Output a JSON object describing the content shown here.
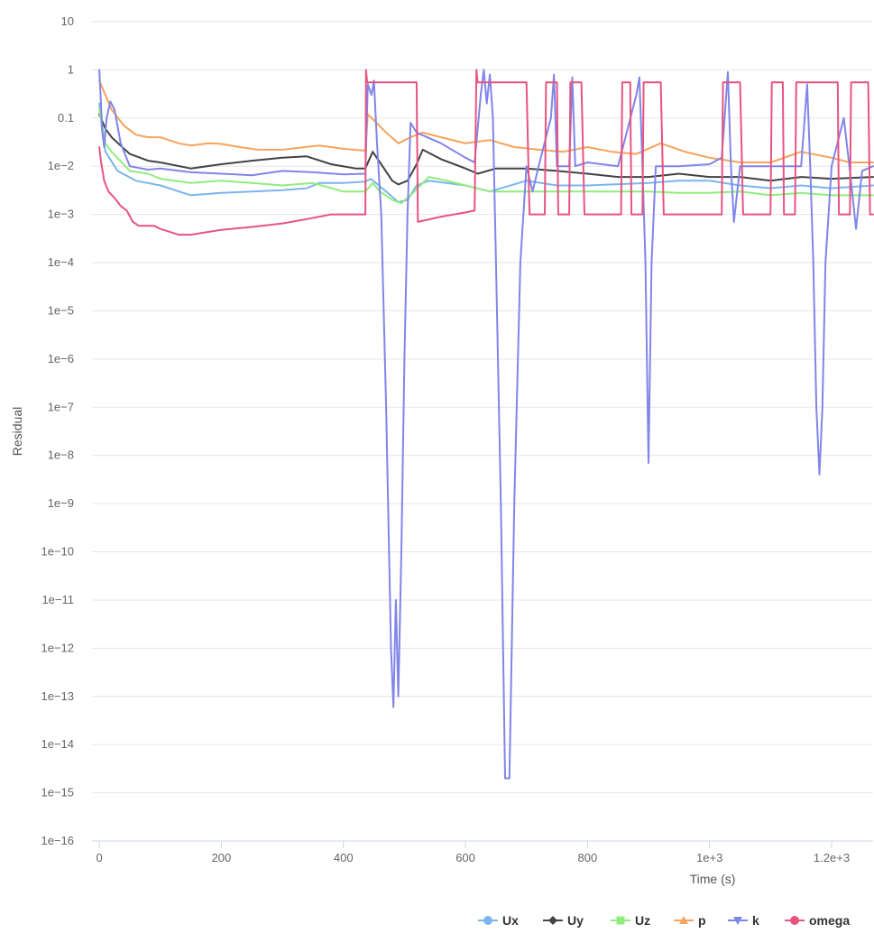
{
  "chart_data": {
    "type": "line",
    "xlabel": "Time (s)",
    "ylabel": "Residual",
    "yscale": "log",
    "xlim": [
      -12,
      1268
    ],
    "ylim_exponent": [
      -16,
      1
    ],
    "x_ticks": [
      0,
      200,
      400,
      600,
      800,
      1000,
      1200
    ],
    "x_tick_labels": [
      "0",
      "200",
      "400",
      "600",
      "800",
      "1e+3",
      "1.2e+3"
    ],
    "y_tick_exponents": [
      1,
      0,
      -1,
      -2,
      -3,
      -4,
      -5,
      -6,
      -7,
      -8,
      -9,
      -10,
      -11,
      -12,
      -13,
      -14,
      -15,
      -16
    ],
    "y_tick_labels": [
      "10",
      "1",
      "0.1",
      "1e−2",
      "1e−3",
      "1e−4",
      "1e−5",
      "1e−6",
      "1e−7",
      "1e−8",
      "1e−9",
      "1e−10",
      "1e−11",
      "1e−12",
      "1e−13",
      "1e−14",
      "1e−15",
      "1e−16"
    ],
    "grid": "horizontal",
    "legend": "bottom-right",
    "series": [
      {
        "name": "Ux",
        "color": "#7cb5ec",
        "marker": "circle",
        "points": [
          [
            0,
            0.2
          ],
          [
            5,
            0.05
          ],
          [
            10,
            0.02
          ],
          [
            30,
            0.008
          ],
          [
            60,
            0.005
          ],
          [
            100,
            0.004
          ],
          [
            150,
            0.0025
          ],
          [
            200,
            0.0028
          ],
          [
            250,
            0.003
          ],
          [
            300,
            0.0032
          ],
          [
            340,
            0.0035
          ],
          [
            360,
            0.0045
          ],
          [
            400,
            0.0045
          ],
          [
            436,
            0.0048
          ],
          [
            445,
            0.0055
          ],
          [
            470,
            0.003
          ],
          [
            490,
            0.0018
          ],
          [
            505,
            0.002
          ],
          [
            520,
            0.004
          ],
          [
            540,
            0.005
          ],
          [
            600,
            0.004
          ],
          [
            640,
            0.003
          ],
          [
            700,
            0.005
          ],
          [
            750,
            0.004
          ],
          [
            800,
            0.004
          ],
          [
            900,
            0.0045
          ],
          [
            950,
            0.005
          ],
          [
            1000,
            0.005
          ],
          [
            1050,
            0.004
          ],
          [
            1100,
            0.0035
          ],
          [
            1150,
            0.004
          ],
          [
            1200,
            0.0035
          ],
          [
            1268,
            0.004
          ]
        ]
      },
      {
        "name": "Uy",
        "color": "#434348",
        "marker": "diamond",
        "points": [
          [
            0,
            0.12
          ],
          [
            10,
            0.06
          ],
          [
            20,
            0.04
          ],
          [
            50,
            0.018
          ],
          [
            80,
            0.013
          ],
          [
            100,
            0.012
          ],
          [
            150,
            0.009
          ],
          [
            200,
            0.011
          ],
          [
            250,
            0.013
          ],
          [
            300,
            0.015
          ],
          [
            340,
            0.016
          ],
          [
            380,
            0.011
          ],
          [
            420,
            0.009
          ],
          [
            436,
            0.009
          ],
          [
            448,
            0.02
          ],
          [
            460,
            0.012
          ],
          [
            480,
            0.005
          ],
          [
            490,
            0.0042
          ],
          [
            505,
            0.005
          ],
          [
            520,
            0.011
          ],
          [
            530,
            0.022
          ],
          [
            560,
            0.014
          ],
          [
            600,
            0.009
          ],
          [
            620,
            0.007
          ],
          [
            650,
            0.009
          ],
          [
            700,
            0.009
          ],
          [
            750,
            0.008
          ],
          [
            800,
            0.007
          ],
          [
            850,
            0.006
          ],
          [
            900,
            0.006
          ],
          [
            950,
            0.007
          ],
          [
            1000,
            0.006
          ],
          [
            1050,
            0.006
          ],
          [
            1100,
            0.005
          ],
          [
            1150,
            0.006
          ],
          [
            1200,
            0.0055
          ],
          [
            1268,
            0.006
          ]
        ]
      },
      {
        "name": "Uz",
        "color": "#90ed7d",
        "marker": "square",
        "points": [
          [
            0,
            0.15
          ],
          [
            10,
            0.03
          ],
          [
            20,
            0.02
          ],
          [
            50,
            0.008
          ],
          [
            80,
            0.007
          ],
          [
            100,
            0.0055
          ],
          [
            150,
            0.0045
          ],
          [
            200,
            0.005
          ],
          [
            250,
            0.0045
          ],
          [
            300,
            0.004
          ],
          [
            350,
            0.0045
          ],
          [
            400,
            0.003
          ],
          [
            436,
            0.003
          ],
          [
            448,
            0.0045
          ],
          [
            460,
            0.003
          ],
          [
            480,
            0.002
          ],
          [
            495,
            0.0017
          ],
          [
            510,
            0.0025
          ],
          [
            540,
            0.006
          ],
          [
            570,
            0.005
          ],
          [
            600,
            0.004
          ],
          [
            640,
            0.003
          ],
          [
            700,
            0.003
          ],
          [
            750,
            0.003
          ],
          [
            800,
            0.003
          ],
          [
            900,
            0.003
          ],
          [
            950,
            0.0028
          ],
          [
            1000,
            0.0028
          ],
          [
            1050,
            0.003
          ],
          [
            1100,
            0.0025
          ],
          [
            1150,
            0.0028
          ],
          [
            1200,
            0.0025
          ],
          [
            1268,
            0.0025
          ]
        ]
      },
      {
        "name": "p",
        "color": "#f7a35c",
        "marker": "triangle",
        "points": [
          [
            0,
            0.6
          ],
          [
            10,
            0.3
          ],
          [
            20,
            0.15
          ],
          [
            40,
            0.07
          ],
          [
            60,
            0.045
          ],
          [
            80,
            0.04
          ],
          [
            100,
            0.04
          ],
          [
            130,
            0.03
          ],
          [
            150,
            0.027
          ],
          [
            180,
            0.03
          ],
          [
            200,
            0.029
          ],
          [
            230,
            0.025
          ],
          [
            260,
            0.022
          ],
          [
            300,
            0.022
          ],
          [
            360,
            0.027
          ],
          [
            400,
            0.023
          ],
          [
            436,
            0.021
          ],
          [
            440,
            0.12
          ],
          [
            450,
            0.09
          ],
          [
            470,
            0.05
          ],
          [
            490,
            0.03
          ],
          [
            510,
            0.04
          ],
          [
            530,
            0.05
          ],
          [
            560,
            0.04
          ],
          [
            600,
            0.03
          ],
          [
            640,
            0.035
          ],
          [
            680,
            0.025
          ],
          [
            720,
            0.022
          ],
          [
            760,
            0.02
          ],
          [
            800,
            0.025
          ],
          [
            840,
            0.02
          ],
          [
            880,
            0.018
          ],
          [
            920,
            0.03
          ],
          [
            960,
            0.02
          ],
          [
            1000,
            0.015
          ],
          [
            1050,
            0.012
          ],
          [
            1100,
            0.012
          ],
          [
            1150,
            0.02
          ],
          [
            1200,
            0.015
          ],
          [
            1230,
            0.012
          ],
          [
            1268,
            0.012
          ]
        ]
      },
      {
        "name": "k",
        "color": "#8085e9",
        "marker": "triangle-down",
        "points": [
          [
            0,
            1
          ],
          [
            2,
            0.3
          ],
          [
            5,
            0.05
          ],
          [
            8,
            0.025
          ],
          [
            12,
            0.1
          ],
          [
            18,
            0.22
          ],
          [
            25,
            0.15
          ],
          [
            35,
            0.03
          ],
          [
            50,
            0.01
          ],
          [
            80,
            0.0085
          ],
          [
            100,
            0.009
          ],
          [
            150,
            0.0075
          ],
          [
            200,
            0.007
          ],
          [
            250,
            0.0065
          ],
          [
            300,
            0.008
          ],
          [
            350,
            0.0075
          ],
          [
            400,
            0.0068
          ],
          [
            436,
            0.007
          ],
          [
            440,
            0.5
          ],
          [
            446,
            0.3
          ],
          [
            450,
            0.6
          ],
          [
            455,
            0.03
          ],
          [
            462,
            0.001
          ],
          [
            470,
            1e-07
          ],
          [
            478,
            1e-12
          ],
          [
            482,
            6e-14
          ],
          [
            486,
            1e-11
          ],
          [
            490,
            1e-13
          ],
          [
            495,
            1e-10
          ],
          [
            500,
            1e-06
          ],
          [
            505,
            0.001
          ],
          [
            510,
            0.08
          ],
          [
            520,
            0.05
          ],
          [
            560,
            0.03
          ],
          [
            600,
            0.015
          ],
          [
            615,
            0.012
          ],
          [
            625,
            0.3
          ],
          [
            630,
            1
          ],
          [
            635,
            0.2
          ],
          [
            640,
            0.8
          ],
          [
            645,
            0.1
          ],
          [
            650,
            0.0001
          ],
          [
            658,
            1e-09
          ],
          [
            665,
            2e-15
          ],
          [
            672,
            2e-15
          ],
          [
            680,
            1e-09
          ],
          [
            690,
            0.0001
          ],
          [
            700,
            0.01
          ],
          [
            710,
            0.003
          ],
          [
            720,
            0.01
          ],
          [
            740,
            0.1
          ],
          [
            745,
            0.8
          ],
          [
            750,
            0.01
          ],
          [
            770,
            0.01
          ],
          [
            775,
            0.7
          ],
          [
            780,
            0.01
          ],
          [
            800,
            0.012
          ],
          [
            850,
            0.01
          ],
          [
            880,
            0.3
          ],
          [
            885,
            0.7
          ],
          [
            890,
            0.01
          ],
          [
            895,
            0.0001
          ],
          [
            900,
            7e-09
          ],
          [
            905,
            0.0001
          ],
          [
            912,
            0.01
          ],
          [
            950,
            0.01
          ],
          [
            1000,
            0.011
          ],
          [
            1020,
            0.015
          ],
          [
            1030,
            0.9
          ],
          [
            1035,
            0.01
          ],
          [
            1040,
            0.0007
          ],
          [
            1050,
            0.01
          ],
          [
            1100,
            0.01
          ],
          [
            1150,
            0.01
          ],
          [
            1160,
            0.5
          ],
          [
            1165,
            0.01
          ],
          [
            1170,
            0.0001
          ],
          [
            1175,
            1e-07
          ],
          [
            1180,
            4e-09
          ],
          [
            1185,
            1e-07
          ],
          [
            1190,
            0.0001
          ],
          [
            1200,
            0.01
          ],
          [
            1220,
            0.1
          ],
          [
            1230,
            0.008
          ],
          [
            1240,
            0.0005
          ],
          [
            1250,
            0.008
          ],
          [
            1268,
            0.01
          ]
        ]
      },
      {
        "name": "omega",
        "color": "#e75480",
        "marker": "circle",
        "points": [
          [
            0,
            0.025
          ],
          [
            3,
            0.012
          ],
          [
            8,
            0.005
          ],
          [
            15,
            0.003
          ],
          [
            25,
            0.0022
          ],
          [
            35,
            0.0015
          ],
          [
            45,
            0.0012
          ],
          [
            55,
            0.0007
          ],
          [
            65,
            0.00058
          ],
          [
            90,
            0.00058
          ],
          [
            100,
            0.0005
          ],
          [
            130,
            0.00038
          ],
          [
            150,
            0.00038
          ],
          [
            200,
            0.00048
          ],
          [
            250,
            0.00055
          ],
          [
            300,
            0.00065
          ],
          [
            340,
            0.0008
          ],
          [
            380,
            0.001
          ],
          [
            436,
            0.001
          ],
          [
            437,
            1
          ],
          [
            439,
            0.55
          ],
          [
            520,
            0.55
          ],
          [
            522,
            0.0007
          ],
          [
            560,
            0.0009
          ],
          [
            600,
            0.0011
          ],
          [
            615,
            0.0012
          ],
          [
            618,
            1
          ],
          [
            620,
            0.55
          ],
          [
            700,
            0.55
          ],
          [
            705,
            0.001
          ],
          [
            730,
            0.001
          ],
          [
            732,
            0.55
          ],
          [
            750,
            0.55
          ],
          [
            752,
            0.001
          ],
          [
            770,
            0.001
          ],
          [
            772,
            0.55
          ],
          [
            790,
            0.55
          ],
          [
            795,
            0.001
          ],
          [
            855,
            0.001
          ],
          [
            857,
            0.55
          ],
          [
            870,
            0.55
          ],
          [
            872,
            0.001
          ],
          [
            890,
            0.001
          ],
          [
            892,
            0.55
          ],
          [
            920,
            0.55
          ],
          [
            925,
            0.001
          ],
          [
            1020,
            0.001
          ],
          [
            1022,
            0.55
          ],
          [
            1050,
            0.55
          ],
          [
            1055,
            0.001
          ],
          [
            1100,
            0.001
          ],
          [
            1102,
            0.55
          ],
          [
            1120,
            0.55
          ],
          [
            1122,
            0.001
          ],
          [
            1140,
            0.001
          ],
          [
            1142,
            0.55
          ],
          [
            1160,
            0.55
          ],
          [
            1165,
            0.55
          ],
          [
            1210,
            0.55
          ],
          [
            1212,
            0.001
          ],
          [
            1230,
            0.001
          ],
          [
            1232,
            0.55
          ],
          [
            1260,
            0.55
          ],
          [
            1263,
            0.001
          ],
          [
            1268,
            0.001
          ]
        ]
      }
    ]
  }
}
